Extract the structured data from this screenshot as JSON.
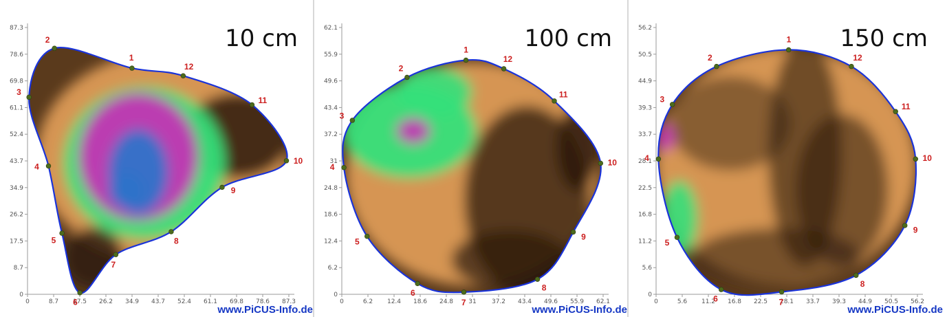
{
  "chart_data": [
    {
      "type": "heatmap",
      "title": "10 cm",
      "x_ticks": [
        "0",
        "8.7",
        "17.5",
        "26.2",
        "34.9",
        "43.7",
        "52.4",
        "61.1",
        "69.8",
        "78.6",
        "87.3"
      ],
      "y_ticks": [
        "87.3",
        "78.6",
        "69.8",
        "61.1",
        "52.4",
        "43.7",
        "34.9",
        "26.2",
        "17.5",
        "8.7",
        "0"
      ],
      "xlim": [
        0,
        87.3
      ],
      "ylim": [
        0,
        87.3
      ],
      "sensor_points": [
        {
          "label": "1",
          "x": 34.9,
          "y": 74.0
        },
        {
          "label": "2",
          "x": 9.0,
          "y": 80.5
        },
        {
          "label": "3",
          "x": 0.5,
          "y": 64.5
        },
        {
          "label": "4",
          "x": 7.0,
          "y": 42.0
        },
        {
          "label": "5",
          "x": 11.5,
          "y": 20.0
        },
        {
          "label": "6",
          "x": 17.5,
          "y": 0.5
        },
        {
          "label": "7",
          "x": 29.5,
          "y": 13.0
        },
        {
          "label": "8",
          "x": 48.0,
          "y": 20.5
        },
        {
          "label": "9",
          "x": 65.0,
          "y": 35.0
        },
        {
          "label": "10",
          "x": 86.5,
          "y": 43.7
        },
        {
          "label": "11",
          "x": 75.0,
          "y": 62.0
        },
        {
          "label": "12",
          "x": 52.0,
          "y": 71.5
        }
      ]
    },
    {
      "type": "heatmap",
      "title": "100 cm",
      "x_ticks": [
        "0",
        "6.2",
        "12.4",
        "18.6",
        "24.8",
        "31",
        "37.2",
        "43.4",
        "49.6",
        "55.9",
        "62.1"
      ],
      "y_ticks": [
        "62.1",
        "55.9",
        "49.6",
        "43.4",
        "37.2",
        "31",
        "24.8",
        "18.6",
        "12.4",
        "6.2",
        "0"
      ],
      "xlim": [
        0,
        62.1
      ],
      "ylim": [
        0,
        62.1
      ],
      "sensor_points": [
        {
          "label": "1",
          "x": 29.5,
          "y": 54.5
        },
        {
          "label": "2",
          "x": 15.5,
          "y": 50.5
        },
        {
          "label": "3",
          "x": 2.5,
          "y": 40.5
        },
        {
          "label": "4",
          "x": 0.5,
          "y": 29.5
        },
        {
          "label": "5",
          "x": 6.0,
          "y": 13.5
        },
        {
          "label": "6",
          "x": 18.0,
          "y": 2.5
        },
        {
          "label": "7",
          "x": 29.0,
          "y": 0.5
        },
        {
          "label": "8",
          "x": 46.5,
          "y": 3.5
        },
        {
          "label": "9",
          "x": 55.0,
          "y": 14.5
        },
        {
          "label": "10",
          "x": 61.5,
          "y": 30.5
        },
        {
          "label": "11",
          "x": 50.5,
          "y": 45.0
        },
        {
          "label": "12",
          "x": 38.5,
          "y": 52.5
        }
      ]
    },
    {
      "type": "heatmap",
      "title": "150 cm",
      "x_ticks": [
        "0",
        "5.6",
        "11.2",
        "16.8",
        "22.5",
        "28.1",
        "33.7",
        "39.3",
        "44.9",
        "50.5",
        "56.2"
      ],
      "y_ticks": [
        "56.2",
        "50.5",
        "44.9",
        "39.3",
        "33.7",
        "28.1",
        "22.5",
        "16.8",
        "11.2",
        "5.6",
        "0"
      ],
      "xlim": [
        0,
        56.2
      ],
      "ylim": [
        0,
        56.2
      ],
      "sensor_points": [
        {
          "label": "1",
          "x": 28.5,
          "y": 51.5
        },
        {
          "label": "2",
          "x": 13.0,
          "y": 48.0
        },
        {
          "label": "3",
          "x": 3.5,
          "y": 40.0
        },
        {
          "label": "4",
          "x": 0.5,
          "y": 28.5
        },
        {
          "label": "5",
          "x": 4.5,
          "y": 12.0
        },
        {
          "label": "6",
          "x": 14.0,
          "y": 1.0
        },
        {
          "label": "7",
          "x": 27.0,
          "y": 0.5
        },
        {
          "label": "8",
          "x": 43.0,
          "y": 4.0
        },
        {
          "label": "9",
          "x": 53.5,
          "y": 14.5
        },
        {
          "label": "10",
          "x": 55.8,
          "y": 28.5
        },
        {
          "label": "11",
          "x": 51.5,
          "y": 38.5
        },
        {
          "label": "12",
          "x": 42.0,
          "y": 48.0
        }
      ]
    }
  ],
  "watermark_text": "www.PiCUS-Info.de",
  "colors": {
    "outline": "#1a33d9",
    "sensor_point": "#4c6b1e",
    "sensor_label": "#cc1f1f",
    "solid_wood_light": "#e3a05a",
    "solid_wood_dark": "#2b1a0c",
    "green": "#35e07a",
    "magenta": "#c233b4",
    "blue": "#2f72c9"
  }
}
